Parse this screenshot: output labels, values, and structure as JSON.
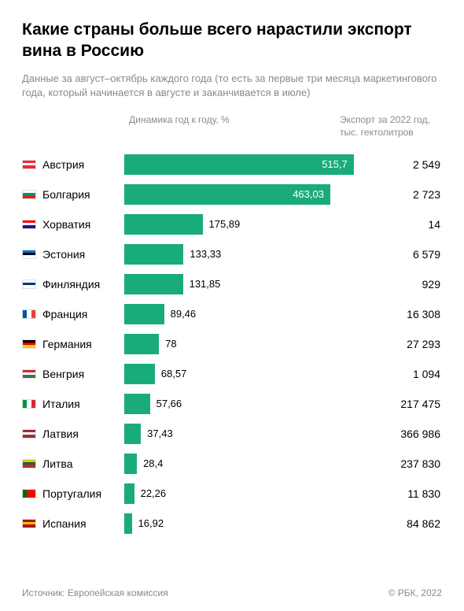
{
  "title": "Какие страны больше всего нарастили экспорт вина в Россию",
  "subtitle": "Данные за август–октябрь каждого года (то есть за первые три месяца маркетингового года, который начинается в августе и заканчивается в июле)",
  "headers": {
    "dynamics": "Динамика год к году, %",
    "export": "Экспорт за 2022 год, тыс. гектолитров"
  },
  "chart": {
    "type": "bar",
    "bar_color": "#1aab7a",
    "max_value": 555,
    "background_color": "#ffffff",
    "axis_color": "#c0c0c0",
    "text_color": "#000000",
    "muted_color": "#8a8a8a",
    "label_inside_threshold": 400,
    "rows": [
      {
        "country": "Австрия",
        "flag": "austria",
        "value": 515.7,
        "value_label": "515,7",
        "export": "2 549"
      },
      {
        "country": "Болгария",
        "flag": "bulgaria",
        "value": 463.03,
        "value_label": "463,03",
        "export": "2 723"
      },
      {
        "country": "Хорватия",
        "flag": "croatia",
        "value": 175.89,
        "value_label": "175,89",
        "export": "14"
      },
      {
        "country": "Эстония",
        "flag": "estonia",
        "value": 133.33,
        "value_label": "133,33",
        "export": "6 579"
      },
      {
        "country": "Финляндия",
        "flag": "finland",
        "value": 131.85,
        "value_label": "131,85",
        "export": "929"
      },
      {
        "country": "Франция",
        "flag": "france",
        "value": 89.46,
        "value_label": "89,46",
        "export": "16 308"
      },
      {
        "country": "Германия",
        "flag": "germany",
        "value": 78,
        "value_label": "78",
        "export": "27 293"
      },
      {
        "country": "Венгрия",
        "flag": "hungary",
        "value": 68.57,
        "value_label": "68,57",
        "export": "1 094"
      },
      {
        "country": "Италия",
        "flag": "italy",
        "value": 57.66,
        "value_label": "57,66",
        "export": "217 475"
      },
      {
        "country": "Латвия",
        "flag": "latvia",
        "value": 37.43,
        "value_label": "37,43",
        "export": "366 986"
      },
      {
        "country": "Литва",
        "flag": "lithuania",
        "value": 28.4,
        "value_label": "28,4",
        "export": "237 830"
      },
      {
        "country": "Португалия",
        "flag": "portugal",
        "value": 22.26,
        "value_label": "22,26",
        "export": "11 830"
      },
      {
        "country": "Испания",
        "flag": "spain",
        "value": 16.92,
        "value_label": "16,92",
        "export": "84 862"
      }
    ]
  },
  "flags": {
    "austria": {
      "dir": "h",
      "stripes": [
        "#ed2939",
        "#ffffff",
        "#ed2939"
      ]
    },
    "bulgaria": {
      "dir": "h",
      "stripes": [
        "#ffffff",
        "#00966e",
        "#d62612"
      ]
    },
    "croatia": {
      "dir": "h",
      "stripes": [
        "#ff0000",
        "#ffffff",
        "#171796"
      ]
    },
    "estonia": {
      "dir": "h",
      "stripes": [
        "#0072ce",
        "#000000",
        "#ffffff"
      ]
    },
    "finland": {
      "dir": "h",
      "stripes": [
        "#ffffff",
        "#003580",
        "#ffffff"
      ]
    },
    "france": {
      "dir": "v",
      "stripes": [
        "#0055a4",
        "#ffffff",
        "#ef4135"
      ]
    },
    "germany": {
      "dir": "h",
      "stripes": [
        "#000000",
        "#dd0000",
        "#ffce00"
      ]
    },
    "hungary": {
      "dir": "h",
      "stripes": [
        "#ce2939",
        "#ffffff",
        "#477050"
      ]
    },
    "italy": {
      "dir": "v",
      "stripes": [
        "#009246",
        "#ffffff",
        "#ce2b37"
      ]
    },
    "latvia": {
      "dir": "h",
      "stripes": [
        "#9e3039",
        "#ffffff",
        "#9e3039"
      ]
    },
    "lithuania": {
      "dir": "h",
      "stripes": [
        "#fdb913",
        "#006a44",
        "#c1272d"
      ]
    },
    "portugal": {
      "dir": "v",
      "stripes": [
        "#006600",
        "#ff0000",
        "#ff0000"
      ]
    },
    "spain": {
      "dir": "h",
      "stripes": [
        "#aa151b",
        "#f1bf00",
        "#aa151b"
      ]
    }
  },
  "footer": {
    "source": "Источник: Европейская комиссия",
    "copyright": "© РБК, 2022"
  }
}
